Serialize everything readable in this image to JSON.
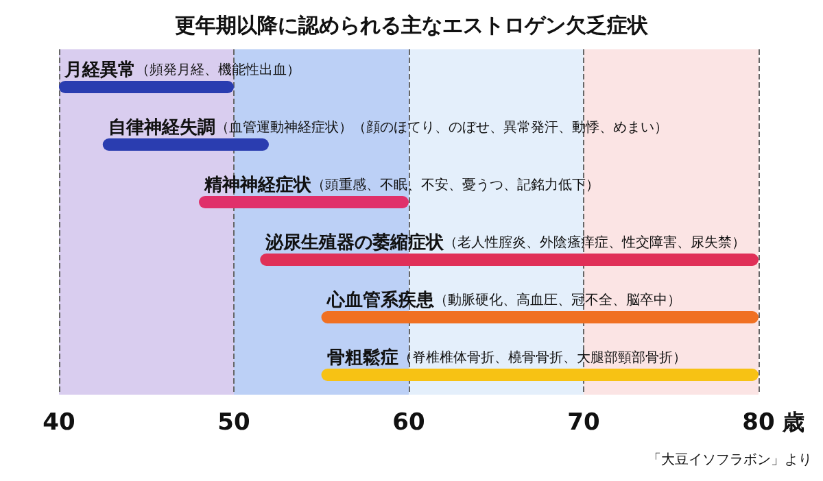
{
  "chart_data": {
    "type": "bar",
    "orientation": "horizontal",
    "title": "更年期以降に認められる主なエストロゲン欠乏症状",
    "xlabel": "歳",
    "categories": [
      "月経異常（頻発月経、機能性出血）",
      "自律神経失調（血管運動神経症状）（顔のほてり、のぼせ、異常発汗、動悸、めまい）",
      "精神神経症状（頭重感、不眠、不安、憂うつ、記銘力低下）",
      "泌尿生殖器の萎縮症状（老人性腟炎、外陰瘙痒症、性交障害、尿失禁）",
      "心血管系疾患（動脈硬化、高血圧、冠不全、脳卒中）",
      "骨粗鬆症（脊椎椎体骨折、橈骨骨折、大腿部頸部骨折）"
    ],
    "base": [
      40,
      42.5,
      48,
      51.5,
      55,
      55
    ],
    "values": [
      10,
      9.5,
      12,
      28.5,
      25,
      25
    ],
    "colors": [
      "#2a3db0",
      "#2a3db0",
      "#e0306a",
      "#e03058",
      "#f07022",
      "#f7c214"
    ],
    "xlim": [
      40,
      80
    ],
    "xticks": [
      40,
      50,
      60,
      70,
      80
    ],
    "grid": "x",
    "bands": [
      {
        "axis": "x",
        "from": 40,
        "to": 50,
        "color": "#d9cdef"
      },
      {
        "axis": "x",
        "from": 50,
        "to": 60,
        "color": "#bcd0f6"
      },
      {
        "axis": "x",
        "from": 60,
        "to": 70,
        "color": "#e4effb"
      },
      {
        "axis": "x",
        "from": 70,
        "to": 80,
        "color": "#fbe4e4"
      }
    ],
    "annotations": [
      "「大豆イソフラボン」より"
    ]
  }
}
